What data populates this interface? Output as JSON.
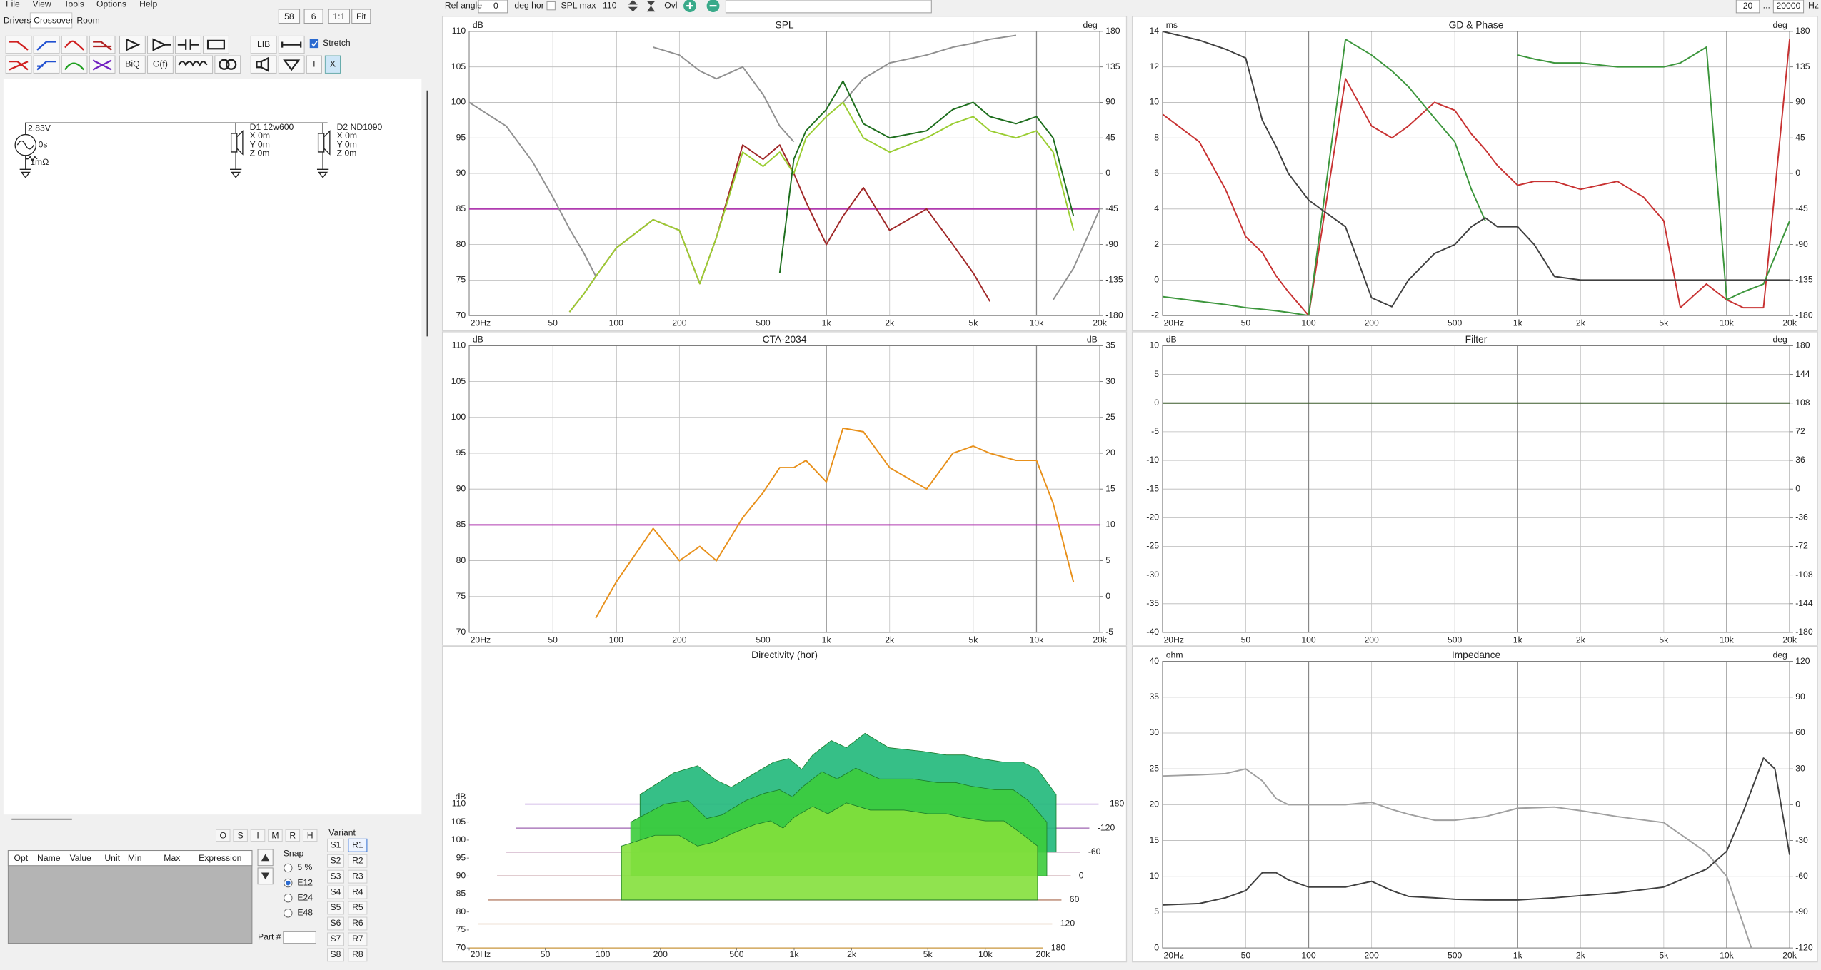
{
  "menu": [
    "File",
    "View",
    "Tools",
    "Options",
    "Help"
  ],
  "tabs": [
    "Drivers",
    "Crossover",
    "Room"
  ],
  "zoom": [
    "58",
    "6",
    "1:1",
    "Fit"
  ],
  "toolbar": {
    "lib": "LIB",
    "biq": "BiQ",
    "gf": "G(f)",
    "t": "T",
    "x": "X",
    "stretch": "Stretch"
  },
  "schematic": {
    "source": {
      "voltage": "2.83V",
      "delay": "0s",
      "resistance": "1mΩ"
    },
    "drivers": [
      {
        "name": "D1 12w600",
        "x": "X 0m",
        "y": "Y 0m",
        "z": "Z 0m"
      },
      {
        "name": "D2 ND1090",
        "x": "X 0m",
        "y": "Y 0m",
        "z": "Z 0m"
      }
    ]
  },
  "optimizer": {
    "buttons": [
      "O",
      "S",
      "I",
      "M",
      "R",
      "H"
    ],
    "columns": [
      "Opt",
      "Name",
      "Value",
      "Unit",
      "Min",
      "Max",
      "Expression"
    ]
  },
  "snap": {
    "title": "Snap",
    "options": [
      "5 %",
      "E12",
      "E24",
      "E48"
    ],
    "selected": 1
  },
  "variant": {
    "title": "Variant",
    "s": [
      "S1",
      "S2",
      "S3",
      "S4",
      "S5",
      "S6",
      "S7",
      "S8"
    ],
    "r": [
      "R1",
      "R2",
      "R3",
      "R4",
      "R5",
      "R6",
      "R7",
      "R8"
    ],
    "selected": 0
  },
  "part": "Part #",
  "topbar": {
    "ref_angle": "Ref angle",
    "angle": "0",
    "deg_hor": "deg hor",
    "spl_max": "SPL max",
    "spl_max_value": "110",
    "ovl": "Ovl",
    "f_min": "20",
    "dots": "...",
    "f_max": "20000",
    "hz": "Hz"
  },
  "chart_data": [
    {
      "type": "line",
      "title": "SPL",
      "ylabel": "dB",
      "y2label": "deg",
      "xscale": "log",
      "grid": true,
      "xlim": [
        20,
        20000
      ],
      "xticks": [
        {
          "value": 20,
          "label": "20Hz"
        },
        50,
        100,
        200,
        500,
        {
          "value": 1000,
          "label": "1k"
        },
        {
          "value": 2000,
          "label": "2k"
        },
        {
          "value": 5000,
          "label": "5k"
        },
        {
          "value": 10000,
          "label": "10k"
        },
        {
          "value": 20000,
          "label": "20k"
        }
      ],
      "ylim": [
        70,
        110
      ],
      "yticks": [
        70,
        75,
        80,
        85,
        90,
        95,
        100,
        105,
        110
      ],
      "y2lim": [
        -180,
        180
      ],
      "y2ticks": [
        -180,
        -135,
        -90,
        -45,
        0,
        45,
        90,
        135,
        180
      ],
      "x": [
        20,
        30,
        40,
        50,
        60,
        70,
        80,
        100,
        150,
        200,
        250,
        300,
        400,
        500,
        600,
        700,
        800,
        1000,
        1200,
        1500,
        2000,
        3000,
        4000,
        5000,
        6000,
        8000,
        10000,
        12000,
        15000,
        20000
      ],
      "hlines": [
        {
          "value": 85,
          "color": "#b03cb0"
        }
      ],
      "series": [
        {
          "color": "#909090",
          "axis": "y2",
          "values": [
            90,
            60,
            15,
            -30,
            -70,
            -100,
            -130,
            null,
            160,
            150,
            130,
            120,
            135,
            100,
            60,
            40,
            null,
            null,
            90,
            120,
            140,
            150,
            160,
            165,
            170,
            175,
            null,
            -160,
            -120,
            -45
          ]
        },
        {
          "color": "#a02828",
          "values": [
            null,
            null,
            null,
            null,
            70.5,
            73,
            75.5,
            79.5,
            83.5,
            82,
            74.5,
            81,
            94,
            92,
            94,
            90,
            86,
            80,
            84,
            88,
            82,
            85,
            80,
            76,
            72,
            null,
            null,
            null,
            null,
            null
          ]
        },
        {
          "color": "#9acd32",
          "values": [
            null,
            null,
            null,
            null,
            70.5,
            73,
            75.5,
            79.5,
            83.5,
            82,
            74.5,
            81,
            93,
            91,
            93,
            90,
            95,
            98,
            100,
            95,
            93,
            95,
            97,
            98,
            96,
            95,
            96,
            93,
            82,
            null
          ]
        },
        {
          "color": "#1e6e1e",
          "values": [
            null,
            null,
            null,
            null,
            null,
            null,
            null,
            null,
            null,
            null,
            null,
            null,
            null,
            null,
            76,
            92,
            96,
            99,
            103,
            97,
            95,
            96,
            99,
            100,
            98,
            97,
            98,
            95,
            84,
            null
          ]
        }
      ]
    },
    {
      "type": "line",
      "title": "GD & Phase",
      "ylabel": "ms",
      "y2label": "deg",
      "xscale": "log",
      "grid": true,
      "xlim": [
        20,
        20000
      ],
      "xticks": [
        {
          "value": 20,
          "label": "20Hz"
        },
        50,
        100,
        200,
        500,
        {
          "value": 1000,
          "label": "1k"
        },
        {
          "value": 2000,
          "label": "2k"
        },
        {
          "value": 5000,
          "label": "5k"
        },
        {
          "value": 10000,
          "label": "10k"
        },
        {
          "value": 20000,
          "label": "20k"
        }
      ],
      "ylim": [
        -2,
        14
      ],
      "yticks": [
        -2,
        0,
        2,
        4,
        6,
        8,
        10,
        12,
        14
      ],
      "y2lim": [
        -180,
        180
      ],
      "y2ticks": [
        -180,
        -135,
        -90,
        -45,
        0,
        45,
        90,
        135,
        180
      ],
      "x": [
        20,
        30,
        40,
        50,
        60,
        70,
        80,
        100,
        150,
        200,
        250,
        300,
        400,
        500,
        600,
        700,
        800,
        1000,
        1200,
        1500,
        2000,
        3000,
        4000,
        5000,
        6000,
        8000,
        10000,
        12000,
        15000,
        20000
      ],
      "series": [
        {
          "color": "#c83232",
          "axis": "y2",
          "values": [
            75,
            40,
            -20,
            -80,
            -100,
            -130,
            -150,
            -180,
            120,
            60,
            45,
            60,
            90,
            80,
            50,
            30,
            10,
            -15,
            -10,
            -10,
            -20,
            -10,
            -30,
            -60,
            -170,
            -140,
            -160,
            -170,
            -170,
            170
          ]
        },
        {
          "color": "#3c963c",
          "axis": "y2",
          "values": [
            -156,
            -162,
            -166,
            -170,
            -172,
            -174,
            -176,
            -180,
            170,
            150,
            130,
            110,
            70,
            40,
            -20,
            -60,
            null,
            150,
            145,
            140,
            140,
            135,
            135,
            135,
            140,
            160,
            -160,
            -150,
            -140,
            -60
          ]
        },
        {
          "color": "#404040",
          "values": [
            14,
            13.5,
            13,
            12.5,
            9,
            7.5,
            6,
            4.5,
            3,
            -1,
            -1.5,
            0,
            1.5,
            2,
            3,
            3.5,
            3,
            3,
            2,
            0.2,
            0,
            0,
            0,
            0,
            0,
            0,
            0,
            0,
            0,
            0
          ]
        }
      ]
    },
    {
      "type": "line",
      "title": "CTA-2034",
      "ylabel": "dB",
      "y2label": "dB",
      "xscale": "log",
      "grid": true,
      "xlim": [
        20,
        20000
      ],
      "xticks": [
        {
          "value": 20,
          "label": "20Hz"
        },
        50,
        100,
        200,
        500,
        {
          "value": 1000,
          "label": "1k"
        },
        {
          "value": 2000,
          "label": "2k"
        },
        {
          "value": 5000,
          "label": "5k"
        },
        {
          "value": 10000,
          "label": "10k"
        },
        {
          "value": 20000,
          "label": "20k"
        }
      ],
      "ylim": [
        70,
        110
      ],
      "yticks": [
        70,
        75,
        80,
        85,
        90,
        95,
        100,
        105,
        110
      ],
      "y2lim": [
        -5,
        35
      ],
      "y2ticks": [
        -5,
        0,
        5,
        10,
        15,
        20,
        25,
        30,
        35
      ],
      "x": [
        20,
        30,
        40,
        50,
        60,
        70,
        80,
        100,
        150,
        200,
        250,
        300,
        400,
        500,
        600,
        700,
        800,
        1000,
        1200,
        1500,
        2000,
        3000,
        4000,
        5000,
        6000,
        8000,
        10000,
        12000,
        15000,
        20000
      ],
      "hlines": [
        {
          "value": 85,
          "color": "#b03cb0"
        }
      ],
      "series": [
        {
          "color": "#e8901a",
          "values": [
            null,
            null,
            null,
            null,
            null,
            null,
            72,
            77,
            84.5,
            80,
            82,
            80,
            86,
            89.5,
            93,
            93,
            94,
            91,
            98.5,
            98,
            93,
            90,
            95,
            96,
            95,
            94,
            94,
            88,
            77,
            null
          ]
        }
      ]
    },
    {
      "type": "line",
      "title": "Filter",
      "ylabel": "dB",
      "y2label": "deg",
      "xscale": "log",
      "grid": true,
      "xlim": [
        20,
        20000
      ],
      "xticks": [
        {
          "value": 20,
          "label": "20Hz"
        },
        50,
        100,
        200,
        500,
        {
          "value": 1000,
          "label": "1k"
        },
        {
          "value": 2000,
          "label": "2k"
        },
        {
          "value": 5000,
          "label": "5k"
        },
        {
          "value": 10000,
          "label": "10k"
        },
        {
          "value": 20000,
          "label": "20k"
        }
      ],
      "ylim": [
        -40,
        10
      ],
      "yticks": [
        -40,
        -35,
        -30,
        -25,
        -20,
        -15,
        -10,
        -5,
        0,
        5,
        10
      ],
      "y2lim": [
        -180,
        180
      ],
      "y2ticks": [
        -180,
        -144,
        -108,
        -72,
        -36,
        0,
        36,
        72,
        108,
        144,
        180
      ],
      "x": [
        20,
        20000
      ],
      "series": [
        {
          "color": "#3a5a2a",
          "values": [
            0,
            0
          ]
        }
      ]
    },
    {
      "type": "waterfall",
      "title": "Directivity (hor)",
      "ylabel": "dB",
      "xscale": "log",
      "xlim": [
        20,
        20000
      ],
      "xticks": [
        {
          "value": 20,
          "label": "20Hz"
        },
        50,
        100,
        200,
        500,
        {
          "value": 1000,
          "label": "1k"
        },
        {
          "value": 2000,
          "label": "2k"
        },
        {
          "value": 5000,
          "label": "5k"
        },
        {
          "value": 10000,
          "label": "10k"
        },
        {
          "value": 20000,
          "label": "20k"
        }
      ],
      "ylim": [
        70,
        110
      ],
      "yticks": [
        70,
        75,
        80,
        85,
        90,
        95,
        100,
        105,
        110
      ],
      "zlim": [
        -180,
        180
      ],
      "zticks": [
        -180,
        -120,
        -60,
        0,
        60,
        120,
        180
      ],
      "x": [
        20,
        30,
        40,
        50,
        60,
        70,
        80,
        100,
        150,
        200,
        250,
        300,
        400,
        500,
        600,
        700,
        800,
        1000,
        1200,
        1500,
        2000,
        3000,
        4000,
        5000,
        6000,
        8000,
        10000,
        12000,
        15000,
        20000
      ],
      "series": [
        {
          "z": -60,
          "color": "#20b87a",
          "values": [
            null,
            null,
            null,
            null,
            null,
            null,
            null,
            86,
            92,
            94,
            90,
            88,
            92,
            95,
            96,
            93,
            97,
            101,
            99,
            103,
            99,
            98,
            97,
            97,
            96,
            95,
            95,
            93,
            86,
            null
          ]
        },
        {
          "z": 0,
          "color": "#3ccc3c",
          "values": [
            null,
            null,
            null,
            null,
            null,
            null,
            null,
            85,
            90,
            91,
            86,
            87,
            91,
            93,
            94,
            92,
            95,
            99,
            97,
            100,
            97,
            97,
            96,
            96,
            95,
            94,
            94,
            91,
            85,
            null
          ]
        },
        {
          "z": 60,
          "color": "#84e03c",
          "values": [
            null,
            null,
            null,
            null,
            null,
            null,
            null,
            85,
            88,
            88,
            85,
            86,
            89,
            91,
            92,
            90,
            93,
            96,
            94,
            97,
            95,
            95,
            94,
            94,
            93,
            92,
            92,
            89,
            85,
            null
          ]
        }
      ]
    },
    {
      "type": "line",
      "title": "Impedance",
      "ylabel": "ohm",
      "y2label": "deg",
      "xscale": "log",
      "grid": true,
      "xlim": [
        20,
        20000
      ],
      "xticks": [
        {
          "value": 20,
          "label": "20Hz"
        },
        50,
        100,
        200,
        500,
        {
          "value": 1000,
          "label": "1k"
        },
        {
          "value": 2000,
          "label": "2k"
        },
        {
          "value": 5000,
          "label": "5k"
        },
        {
          "value": 10000,
          "label": "10k"
        },
        {
          "value": 20000,
          "label": "20k"
        }
      ],
      "ylim": [
        0,
        40
      ],
      "yticks": [
        0,
        5,
        10,
        15,
        20,
        25,
        30,
        35,
        40
      ],
      "y2lim": [
        -120,
        120
      ],
      "y2ticks": [
        -120,
        -90,
        -60,
        -30,
        0,
        30,
        60,
        90,
        120
      ],
      "x": [
        20,
        30,
        40,
        50,
        60,
        70,
        80,
        100,
        150,
        200,
        250,
        300,
        400,
        500,
        700,
        1000,
        1500,
        2000,
        3000,
        5000,
        8000,
        10000,
        12000,
        15000,
        17000,
        20000
      ],
      "series": [
        {
          "color": "#a0a0a0",
          "axis": "y2",
          "values": [
            24,
            25,
            26,
            30,
            20,
            5,
            0,
            0,
            0,
            2,
            -4,
            -8,
            -13,
            -13,
            -10,
            -3,
            -2,
            -5,
            -10,
            -15,
            -40,
            -60,
            -100,
            -150,
            null,
            null
          ]
        },
        {
          "color": "#404040",
          "values": [
            6,
            6.2,
            7,
            8,
            10.5,
            10.5,
            9.5,
            8.5,
            8.5,
            9.3,
            8,
            7.2,
            7,
            6.8,
            6.7,
            6.7,
            7,
            7.3,
            7.7,
            8.5,
            11,
            13.5,
            19,
            26.5,
            25,
            13
          ]
        }
      ]
    }
  ]
}
